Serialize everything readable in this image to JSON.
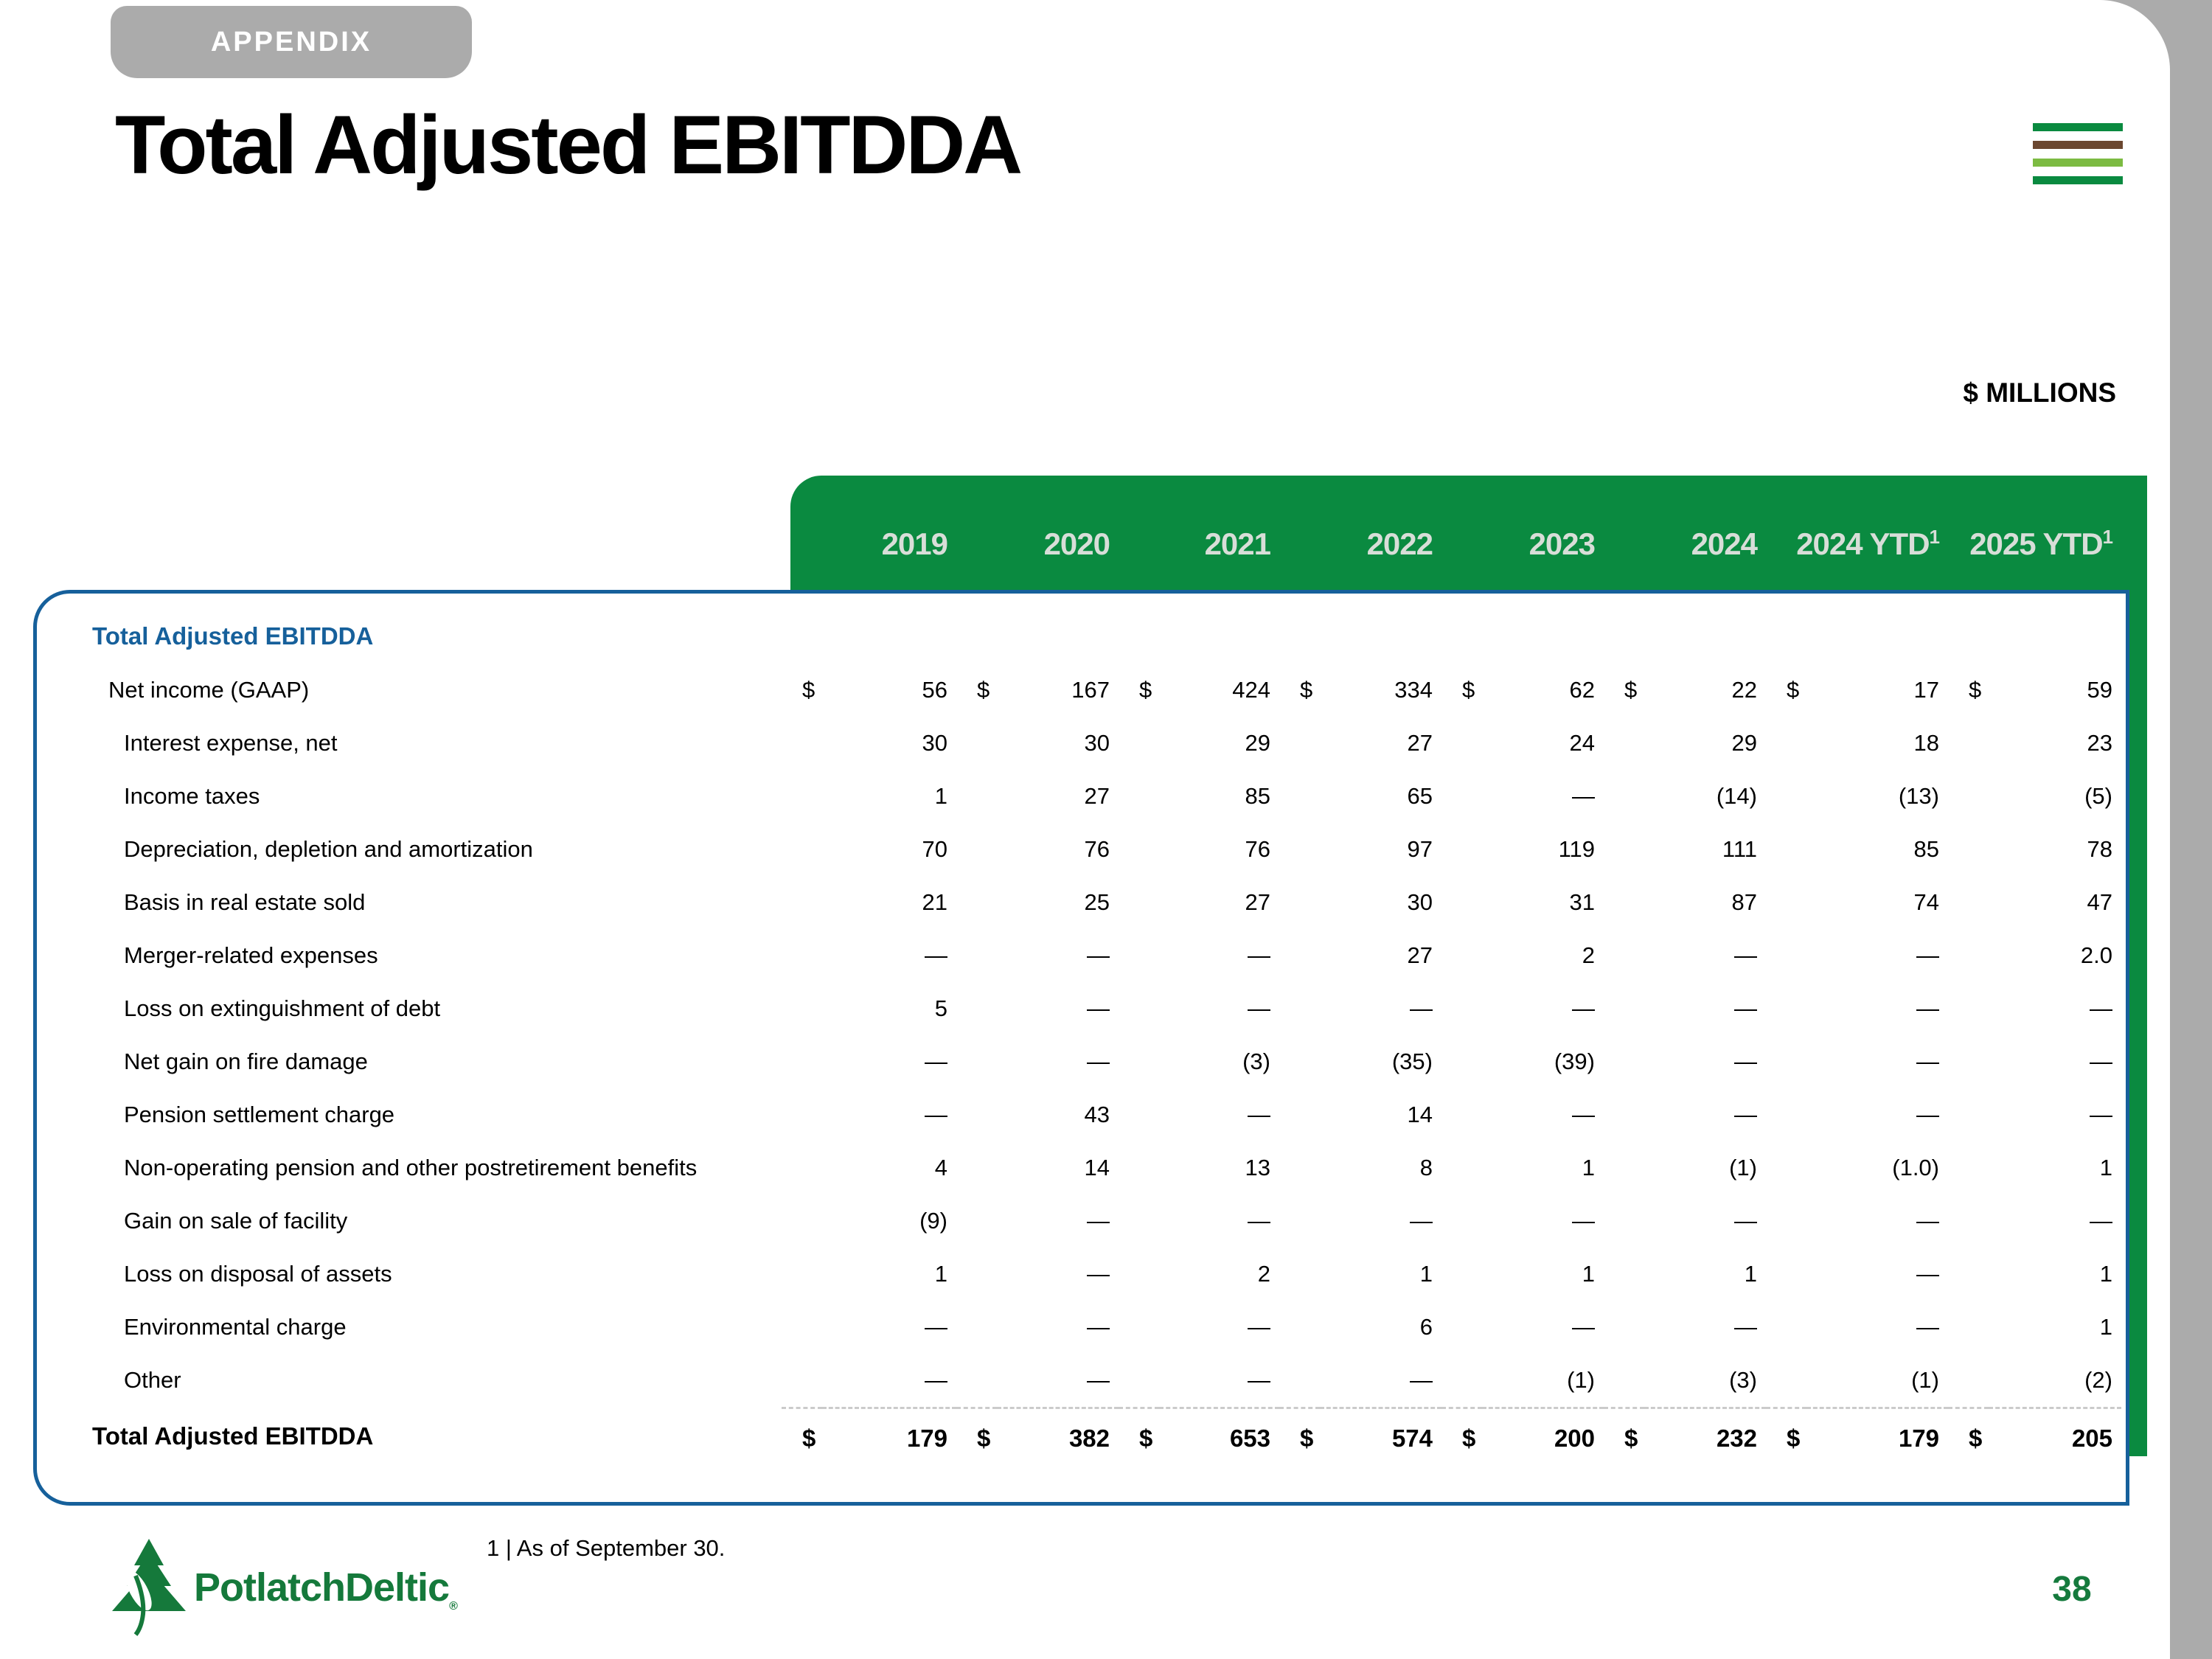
{
  "appendix_tab": {
    "label": "APPENDIX"
  },
  "header": {
    "title": "Total Adjusted EBITDDA"
  },
  "units_label": "$ MILLIONS",
  "stripes_icon": {
    "colors": [
      "#0a8a40",
      "#6b4730",
      "#7cbb42",
      "#0a8a40"
    ]
  },
  "table": {
    "section_label": "Total Adjusted EBITDDA",
    "columns": [
      {
        "label": "2019",
        "sup": ""
      },
      {
        "label": "2020",
        "sup": ""
      },
      {
        "label": "2021",
        "sup": ""
      },
      {
        "label": "2022",
        "sup": ""
      },
      {
        "label": "2023",
        "sup": ""
      },
      {
        "label": "2024",
        "sup": ""
      },
      {
        "label": "2024 YTD",
        "sup": "1"
      },
      {
        "label": "2025 YTD",
        "sup": "1"
      }
    ],
    "rows": [
      {
        "label": "Net income (GAAP)",
        "indent": 1,
        "dollar": true,
        "values": [
          "56",
          "167",
          "424",
          "334",
          "62",
          "22",
          "17",
          "59"
        ]
      },
      {
        "label": "Interest expense, net",
        "indent": 2,
        "dollar": false,
        "values": [
          "30",
          "30",
          "29",
          "27",
          "24",
          "29",
          "18",
          "23"
        ]
      },
      {
        "label": "Income taxes",
        "indent": 2,
        "dollar": false,
        "values": [
          "1",
          "27",
          "85",
          "65",
          "—",
          "(14)",
          "(13)",
          "(5)"
        ]
      },
      {
        "label": "Depreciation, depletion and amortization",
        "indent": 2,
        "dollar": false,
        "values": [
          "70",
          "76",
          "76",
          "97",
          "119",
          "111",
          "85",
          "78"
        ]
      },
      {
        "label": "Basis in real estate sold",
        "indent": 2,
        "dollar": false,
        "values": [
          "21",
          "25",
          "27",
          "30",
          "31",
          "87",
          "74",
          "47"
        ]
      },
      {
        "label": "Merger-related expenses",
        "indent": 2,
        "dollar": false,
        "values": [
          "—",
          "—",
          "—",
          "27",
          "2",
          "—",
          "—",
          "2.0"
        ]
      },
      {
        "label": "Loss on extinguishment of debt",
        "indent": 2,
        "dollar": false,
        "values": [
          "5",
          "—",
          "—",
          "—",
          "—",
          "—",
          "—",
          "—"
        ]
      },
      {
        "label": "Net gain on fire damage",
        "indent": 2,
        "dollar": false,
        "values": [
          "—",
          "—",
          "(3)",
          "(35)",
          "(39)",
          "—",
          "—",
          "—"
        ]
      },
      {
        "label": "Pension settlement charge",
        "indent": 2,
        "dollar": false,
        "values": [
          "—",
          "43",
          "—",
          "14",
          "—",
          "—",
          "—",
          "—"
        ]
      },
      {
        "label": "Non-operating pension and other postretirement benefits",
        "indent": 2,
        "dollar": false,
        "values": [
          "4",
          "14",
          "13",
          "8",
          "1",
          "(1)",
          "(1.0)",
          "1"
        ]
      },
      {
        "label": "Gain on sale of facility",
        "indent": 2,
        "dollar": false,
        "values": [
          "(9)",
          "—",
          "—",
          "—",
          "—",
          "—",
          "—",
          "—"
        ]
      },
      {
        "label": "Loss on disposal of assets",
        "indent": 2,
        "dollar": false,
        "values": [
          "1",
          "—",
          "2",
          "1",
          "1",
          "1",
          "—",
          "1"
        ]
      },
      {
        "label": "Environmental charge",
        "indent": 2,
        "dollar": false,
        "values": [
          "—",
          "—",
          "—",
          "6",
          "—",
          "—",
          "—",
          "1"
        ]
      },
      {
        "label": "Other",
        "indent": 2,
        "dollar": false,
        "values": [
          "—",
          "—",
          "—",
          "—",
          "(1)",
          "(3)",
          "(1)",
          "(2)"
        ]
      }
    ],
    "total_row": {
      "label": "Total Adjusted EBITDDA",
      "dollar": true,
      "values": [
        "179",
        "382",
        "653",
        "574",
        "200",
        "232",
        "179",
        "205"
      ]
    }
  },
  "footnote": "1 | As of September 30.",
  "logo": {
    "name": "PotlatchDeltic",
    "registered_mark": "®"
  },
  "page_number": "38",
  "colors": {
    "band_green": "#0a8a40",
    "border_blue": "#16609b",
    "edge_gray": "#ababab",
    "logo_green": "#15793b",
    "year_text": "#d8ded8",
    "stripe_brown": "#6b4730",
    "stripe_light_green": "#7cbb42"
  }
}
